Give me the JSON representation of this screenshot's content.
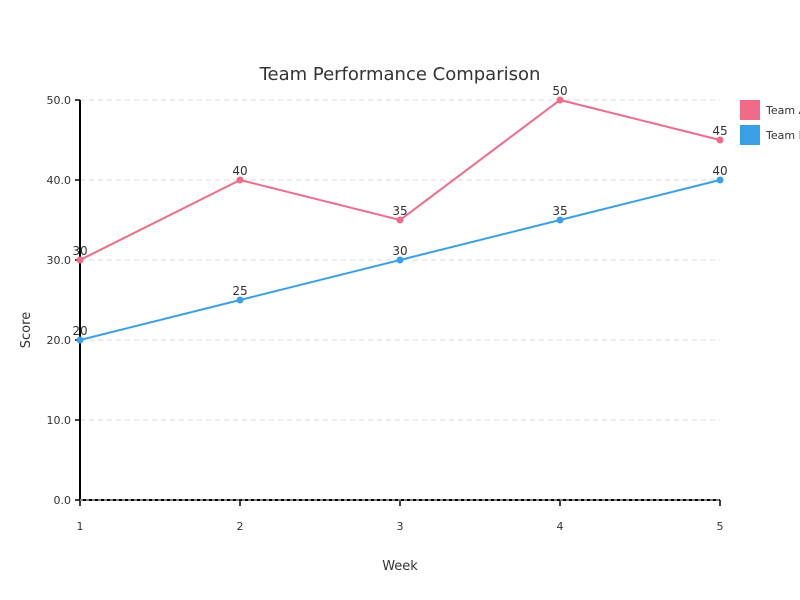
{
  "chart_data": {
    "type": "line",
    "title": "Team Performance Comparison",
    "xlabel": "Week",
    "ylabel": "Score",
    "x": [
      1,
      2,
      3,
      4,
      5
    ],
    "x_tick_labels": [
      "1",
      "2",
      "3",
      "4",
      "5"
    ],
    "ylim": [
      0,
      50
    ],
    "y_ticks": [
      0,
      10,
      20,
      30,
      40,
      50
    ],
    "y_tick_labels": [
      "0.0",
      "10.0",
      "20.0",
      "30.0",
      "40.0",
      "50.0"
    ],
    "grid": true,
    "legend_position": "right",
    "series": [
      {
        "name": "Team A",
        "color": "#f06a8a",
        "values": [
          30,
          40,
          35,
          50,
          45
        ]
      },
      {
        "name": "Team B",
        "color": "#3aa0e6",
        "values": [
          20,
          25,
          30,
          35,
          40
        ]
      }
    ]
  }
}
